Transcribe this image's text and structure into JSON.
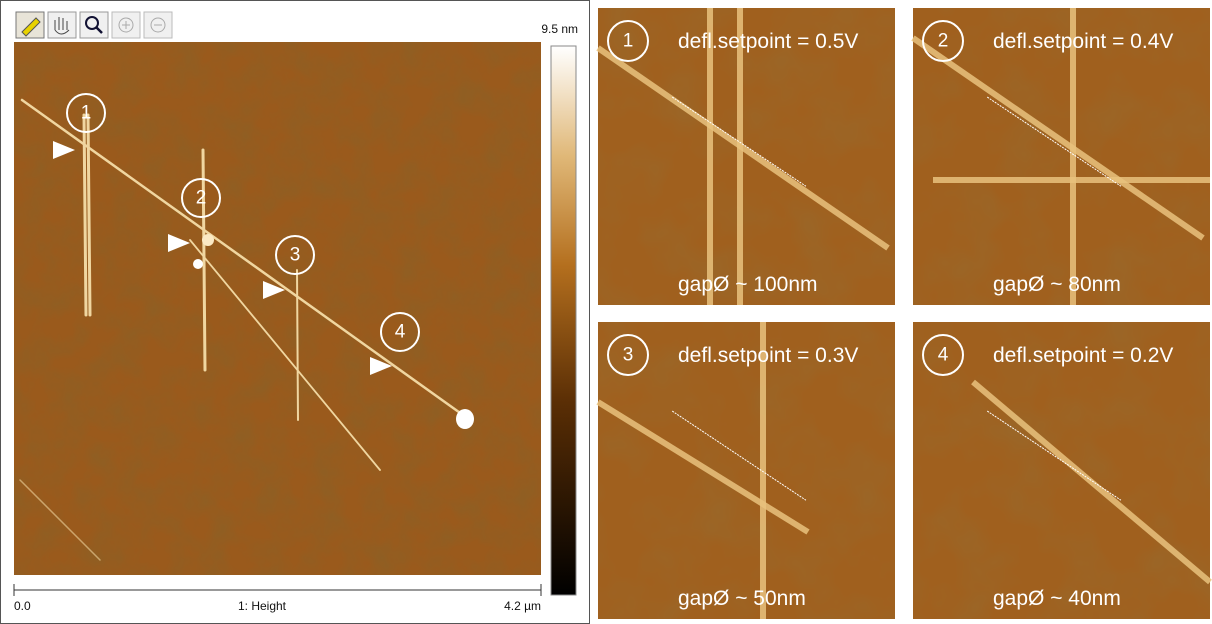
{
  "main_image": {
    "scale_max": "9.5 nm",
    "axis_start": "0.0",
    "channel": "1: Height",
    "axis_end": "4.2 µm",
    "markers": [
      "1",
      "2",
      "3",
      "4"
    ]
  },
  "panels": [
    {
      "number": "1",
      "setpoint": "defl.setpoint = 0.5V",
      "gap": "gapØ ~ 100nm"
    },
    {
      "number": "2",
      "setpoint": "defl.setpoint = 0.4V",
      "gap": "gapØ ~ 80nm"
    },
    {
      "number": "3",
      "setpoint": "defl.setpoint = 0.3V",
      "gap": "gapØ ~ 50nm"
    },
    {
      "number": "4",
      "setpoint": "defl.setpoint = 0.2V",
      "gap": "gapØ ~ 40nm"
    }
  ]
}
